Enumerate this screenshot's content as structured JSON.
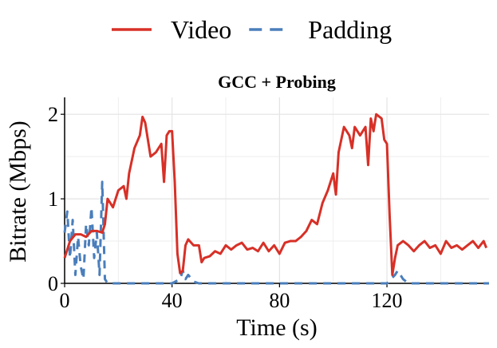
{
  "chart_data": {
    "type": "line",
    "title": "GCC + Probing",
    "xlabel": "Time (s)",
    "ylabel": "Bitrate (Mbps)",
    "xlim": [
      0,
      158
    ],
    "ylim": [
      0,
      2.2
    ],
    "xticks": [
      0,
      40,
      80,
      120
    ],
    "yticks": [
      0,
      1,
      2
    ],
    "xminor": [
      20,
      60,
      100,
      140
    ],
    "yminor": [
      0.5,
      1.5
    ],
    "grid": true,
    "legend": "top",
    "series": [
      {
        "name": "Video",
        "color": "#d73027",
        "dash": false,
        "x": [
          0,
          2,
          4,
          6,
          8,
          10,
          12,
          14,
          15,
          16,
          18,
          20,
          22,
          23,
          24,
          26,
          28,
          29,
          30,
          32,
          34,
          36,
          37,
          38,
          39,
          40,
          41,
          42,
          43,
          44,
          45,
          46,
          48,
          50,
          51,
          52,
          54,
          56,
          58,
          60,
          62,
          64,
          66,
          68,
          70,
          72,
          74,
          76,
          78,
          80,
          82,
          84,
          86,
          88,
          90,
          92,
          94,
          96,
          98,
          100,
          101,
          102,
          104,
          106,
          107,
          108,
          110,
          112,
          113,
          114,
          115,
          116,
          118,
          119,
          120,
          121,
          122,
          123,
          124,
          126,
          128,
          130,
          132,
          134,
          136,
          138,
          140,
          142,
          144,
          146,
          148,
          150,
          152,
          154,
          156,
          157
        ],
        "values": [
          0.3,
          0.5,
          0.58,
          0.58,
          0.55,
          0.62,
          0.62,
          0.6,
          0.7,
          1.0,
          0.9,
          1.1,
          1.15,
          1.0,
          1.3,
          1.6,
          1.75,
          1.97,
          1.9,
          1.5,
          1.55,
          1.65,
          1.2,
          1.75,
          1.8,
          1.8,
          1.2,
          0.35,
          0.12,
          0.15,
          0.45,
          0.52,
          0.45,
          0.45,
          0.25,
          0.3,
          0.32,
          0.38,
          0.35,
          0.45,
          0.4,
          0.45,
          0.48,
          0.4,
          0.42,
          0.38,
          0.48,
          0.38,
          0.45,
          0.35,
          0.48,
          0.5,
          0.5,
          0.55,
          0.62,
          0.75,
          0.7,
          0.95,
          1.1,
          1.3,
          1.05,
          1.55,
          1.85,
          1.75,
          1.6,
          1.85,
          1.75,
          1.85,
          1.4,
          1.95,
          1.8,
          2.0,
          1.95,
          1.7,
          1.65,
          0.8,
          0.1,
          0.3,
          0.45,
          0.5,
          0.45,
          0.38,
          0.45,
          0.5,
          0.42,
          0.45,
          0.35,
          0.5,
          0.42,
          0.45,
          0.4,
          0.45,
          0.5,
          0.42,
          0.5,
          0.42
        ]
      },
      {
        "name": "Padding",
        "color": "#4a7ebb",
        "dash": true,
        "x": [
          0,
          1,
          2,
          3,
          4,
          5,
          6,
          7,
          8,
          9,
          10,
          11,
          12,
          13,
          14,
          15,
          16,
          20,
          40,
          43,
          44,
          45,
          46,
          48,
          50,
          120,
          123,
          124,
          126,
          128,
          158
        ],
        "values": [
          0.6,
          0.85,
          0.3,
          0.75,
          0.1,
          0.55,
          0.2,
          0.05,
          0.7,
          0.45,
          0.9,
          0.3,
          0.6,
          0.1,
          1.2,
          0.05,
          0,
          0,
          0,
          0.05,
          0.15,
          0.05,
          0.1,
          0.02,
          0,
          0,
          0.1,
          0.15,
          0.05,
          0,
          0
        ]
      }
    ]
  }
}
